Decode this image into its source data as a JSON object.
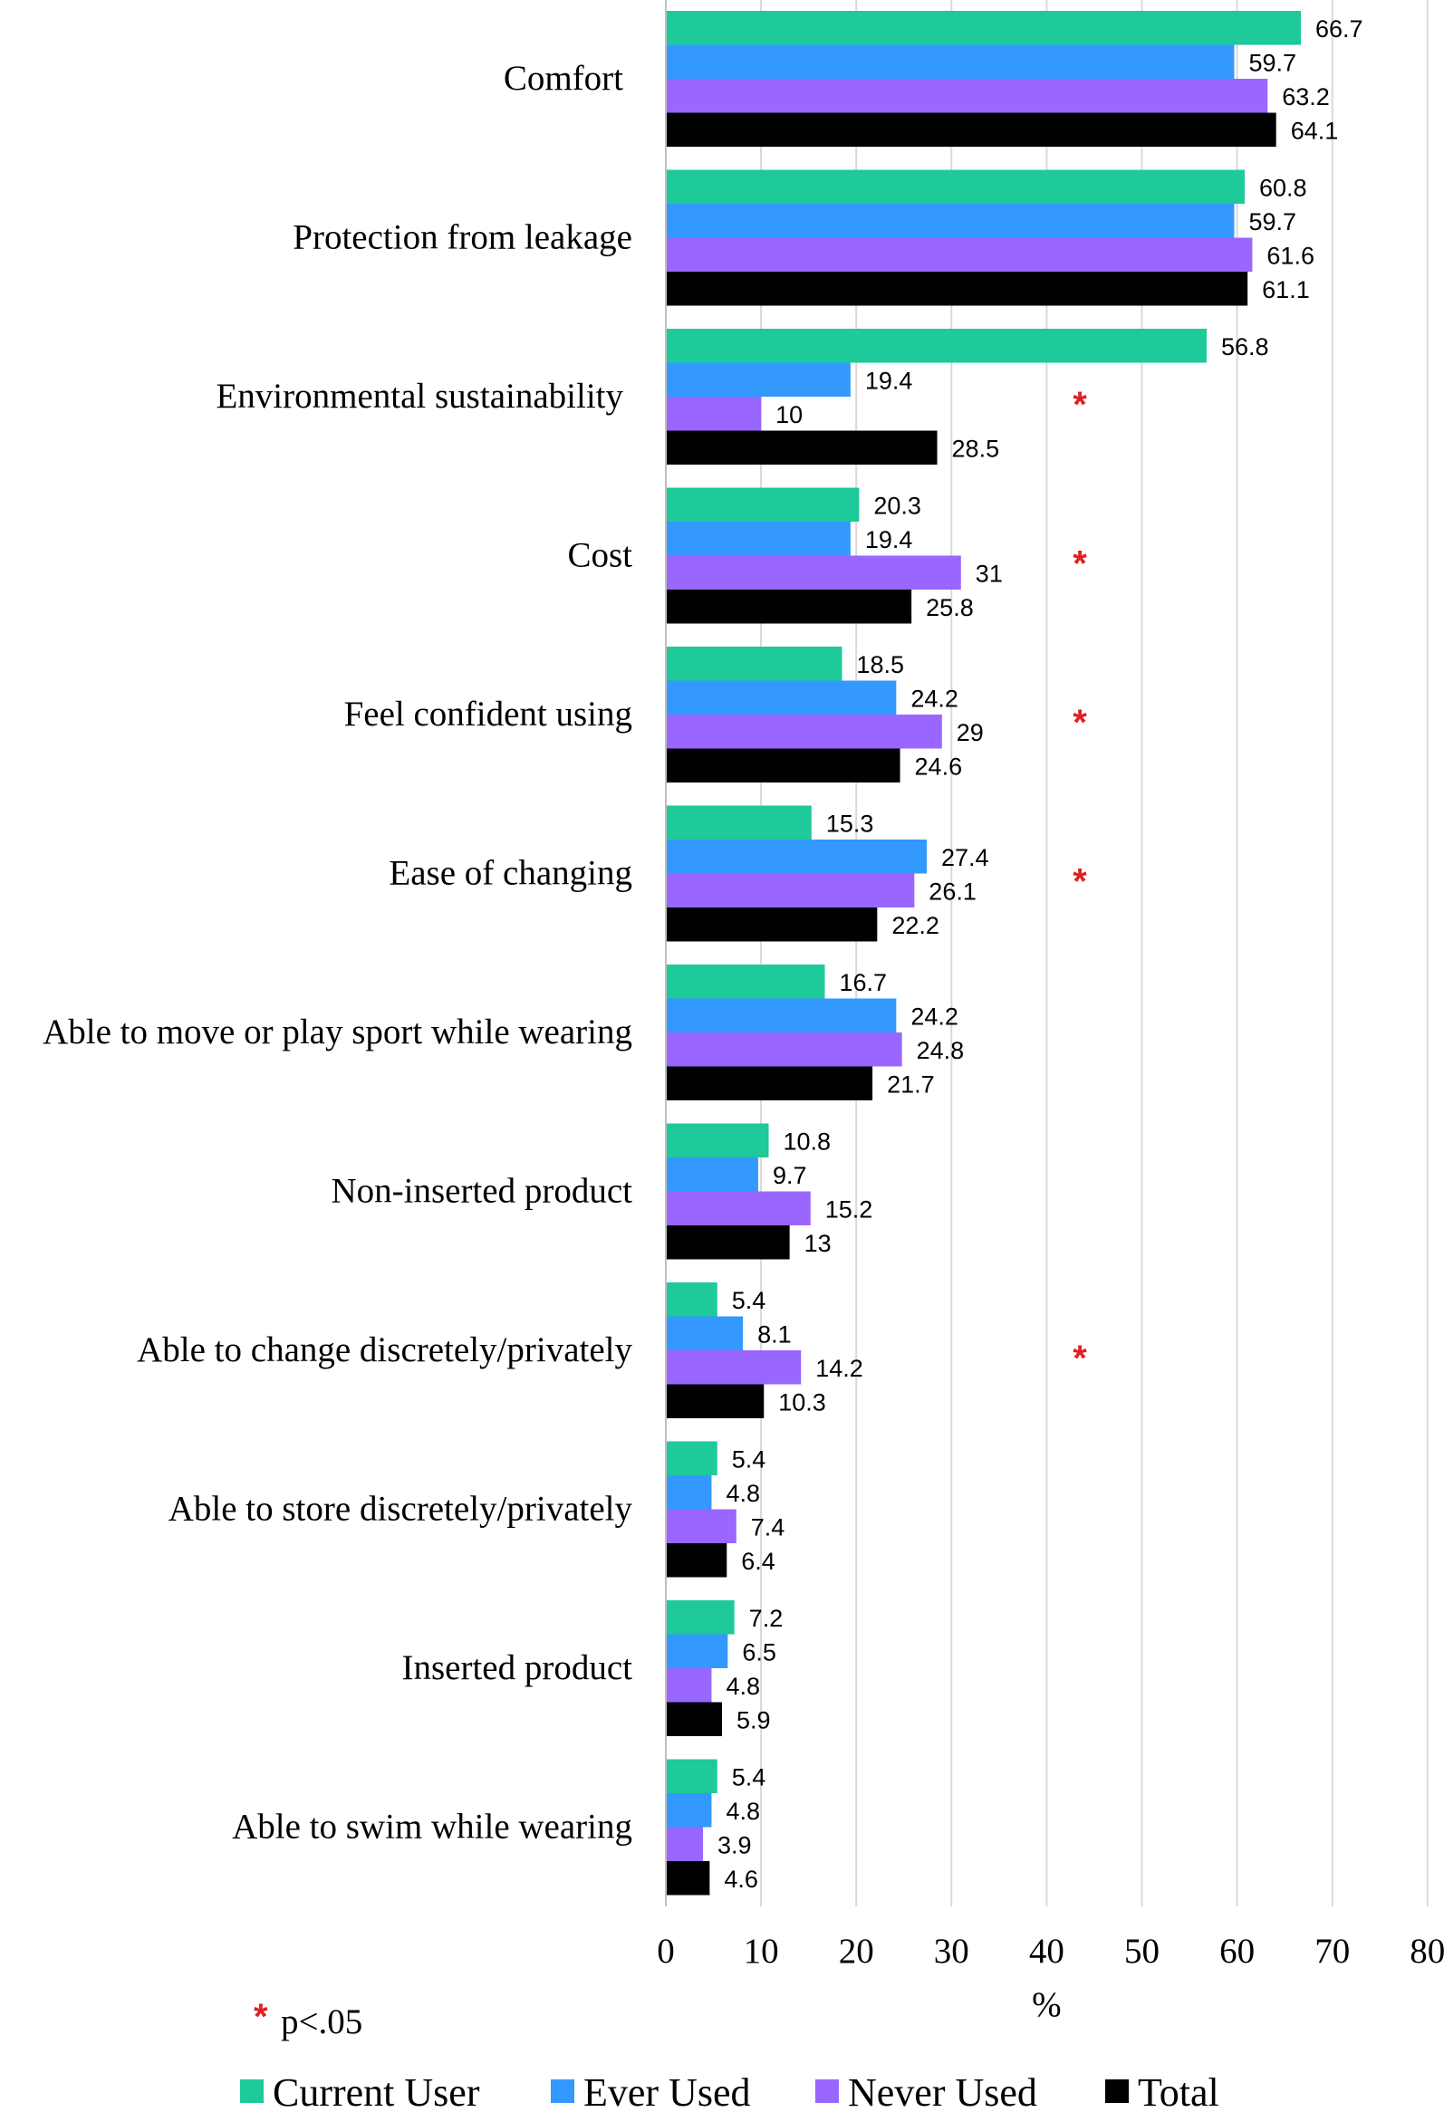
{
  "chart_data": {
    "type": "bar",
    "orientation": "horizontal",
    "categories": [
      "Comfort",
      "Protection from leakage",
      "Environmental sustainability",
      "Cost",
      "Feel confident using",
      "Ease of changing",
      "Able to move or play sport while wearing",
      "Non-inserted product",
      "Able to change discretely/privately",
      "Able to store discretely/privately",
      "Inserted product",
      "Able to swim while wearing"
    ],
    "series": [
      {
        "name": "Current User",
        "color": "#1ec99a",
        "values": [
          66.7,
          60.8,
          56.8,
          20.3,
          18.5,
          15.3,
          16.7,
          10.8,
          5.4,
          5.4,
          7.2,
          5.4
        ]
      },
      {
        "name": "Ever Used",
        "color": "#3399ff",
        "values": [
          59.7,
          59.7,
          19.4,
          19.4,
          24.2,
          27.4,
          24.2,
          9.7,
          8.1,
          4.8,
          6.5,
          4.8
        ]
      },
      {
        "name": "Never Used",
        "color": "#9966ff",
        "values": [
          63.2,
          61.6,
          10,
          31,
          29,
          26.1,
          24.8,
          15.2,
          14.2,
          7.4,
          4.8,
          3.9
        ]
      },
      {
        "name": "Total",
        "color": "#000000",
        "values": [
          64.1,
          61.1,
          28.5,
          25.8,
          24.6,
          22.2,
          21.7,
          13,
          10.3,
          6.4,
          5.9,
          4.6
        ]
      }
    ],
    "significant": [
      false,
      false,
      true,
      true,
      true,
      true,
      false,
      false,
      true,
      false,
      false,
      false
    ],
    "significance_marker": "*",
    "significance_color": "#e02020",
    "significance_note": "p<.05",
    "xlabel": "%",
    "xlim": [
      0,
      80
    ],
    "xticks": [
      0,
      10,
      20,
      30,
      40,
      50,
      60,
      70,
      80
    ],
    "grid": "vertical",
    "legend_position": "bottom"
  }
}
